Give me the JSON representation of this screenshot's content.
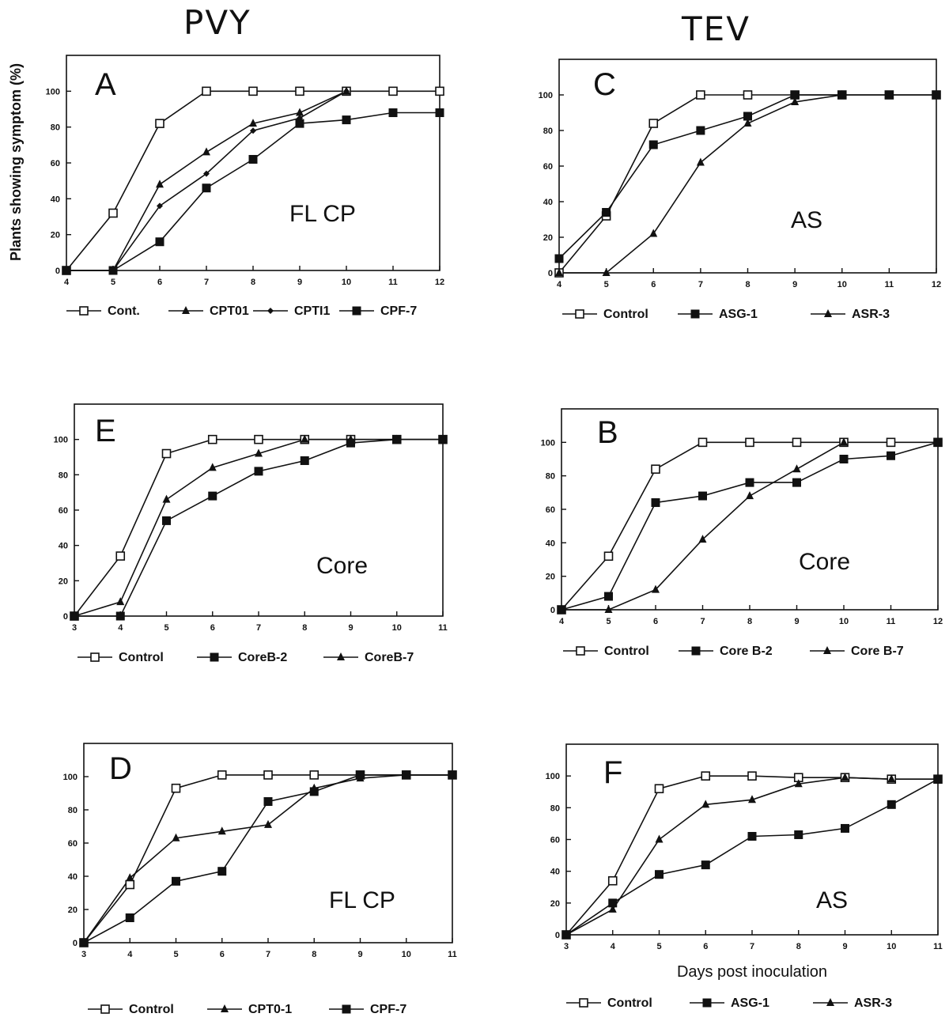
{
  "column_titles": [
    "PVY",
    "TEV"
  ],
  "colors": {
    "ink": "#111111",
    "background": "#ffffff"
  },
  "chart_data": [
    {
      "type": "line",
      "panel": "A",
      "annotation": "FL CP",
      "ylabel": "Plants showing symptom (%)",
      "xlabel": "",
      "x": [
        4,
        5,
        6,
        7,
        8,
        9,
        10,
        11,
        12
      ],
      "xlim": [
        4,
        12
      ],
      "ylim": [
        0,
        120
      ],
      "yticks": [
        0,
        20,
        40,
        60,
        80,
        100
      ],
      "grid": false,
      "legend": "bottom",
      "series": [
        {
          "name": "Cont.",
          "marker": "open-square",
          "x": [
            4,
            5,
            6,
            7,
            8,
            9,
            10,
            11,
            12
          ],
          "values": [
            0,
            32,
            82,
            100,
            100,
            100,
            100,
            100,
            100
          ]
        },
        {
          "name": "CPT01",
          "marker": "triangle",
          "x": [
            4,
            5,
            6,
            7,
            8,
            9,
            10
          ],
          "values": [
            0,
            0,
            48,
            66,
            82,
            88,
            100
          ]
        },
        {
          "name": "CPTI1",
          "marker": "diamond",
          "x": [
            4,
            5,
            6,
            7,
            8,
            9,
            10
          ],
          "values": [
            0,
            0,
            36,
            54,
            78,
            85,
            100
          ]
        },
        {
          "name": "CPF-7",
          "marker": "square",
          "x": [
            4,
            5,
            6,
            7,
            8,
            9,
            10,
            11,
            12
          ],
          "values": [
            0,
            0,
            16,
            46,
            62,
            82,
            84,
            88,
            88
          ]
        }
      ]
    },
    {
      "type": "line",
      "panel": "B",
      "annotation": "Core",
      "ylabel": "Plants showing symptom (%)",
      "xlabel": "",
      "x": [
        4,
        5,
        6,
        7,
        8,
        9,
        10,
        11,
        12
      ],
      "xlim": [
        4,
        12
      ],
      "ylim": [
        0,
        120
      ],
      "yticks": [
        0,
        20,
        40,
        60,
        80,
        100
      ],
      "grid": false,
      "legend": "bottom",
      "series": [
        {
          "name": "Control",
          "marker": "open-square",
          "x": [
            4,
            5,
            6,
            7,
            8,
            9,
            10,
            11,
            12
          ],
          "values": [
            0,
            32,
            84,
            100,
            100,
            100,
            100,
            100,
            100
          ]
        },
        {
          "name": "Core B-2",
          "marker": "square",
          "x": [
            4,
            5,
            6,
            7,
            8,
            9,
            10,
            11,
            12
          ],
          "values": [
            0,
            8,
            64,
            68,
            76,
            76,
            90,
            92,
            100
          ]
        },
        {
          "name": "Core B-7",
          "marker": "triangle",
          "x": [
            4,
            5,
            6,
            7,
            8,
            9,
            10
          ],
          "values": [
            0,
            0,
            12,
            42,
            68,
            84,
            100
          ]
        }
      ]
    },
    {
      "type": "line",
      "panel": "C",
      "annotation": "AS",
      "ylabel": "Plants showing symptom (%)",
      "xlabel": "Days post inoculation",
      "x": [
        4,
        5,
        6,
        7,
        8,
        9,
        10,
        11,
        12
      ],
      "xlim": [
        4,
        12
      ],
      "ylim": [
        0,
        120
      ],
      "yticks": [
        0,
        20,
        40,
        60,
        80,
        100
      ],
      "grid": false,
      "legend": "bottom",
      "series": [
        {
          "name": "Control",
          "marker": "open-square",
          "x": [
            4,
            5,
            6,
            7,
            8,
            9,
            10,
            11,
            12
          ],
          "values": [
            0,
            32,
            84,
            100,
            100,
            100,
            100,
            100,
            100
          ]
        },
        {
          "name": "ASG-1",
          "marker": "square",
          "x": [
            4,
            5,
            6,
            7,
            8,
            9,
            10,
            11,
            12
          ],
          "values": [
            8,
            34,
            72,
            80,
            88,
            100,
            100,
            100,
            100
          ]
        },
        {
          "name": "ASR-3",
          "marker": "triangle",
          "x": [
            4,
            5,
            6,
            7,
            8,
            9,
            10
          ],
          "values": [
            0,
            0,
            22,
            62,
            84,
            96,
            100
          ]
        }
      ]
    },
    {
      "type": "line",
      "panel": "D",
      "annotation": "FL CP",
      "ylabel": "",
      "xlabel": "",
      "x": [
        3,
        4,
        5,
        6,
        7,
        8,
        9,
        10,
        11
      ],
      "xlim": [
        3,
        11
      ],
      "ylim": [
        0,
        120
      ],
      "yticks": [
        0,
        20,
        40,
        60,
        80,
        100
      ],
      "grid": false,
      "legend": "bottom",
      "series": [
        {
          "name": "Control",
          "marker": "open-square",
          "x": [
            3,
            4,
            5,
            6,
            7,
            8,
            9,
            10,
            11
          ],
          "values": [
            0,
            35,
            93,
            101,
            101,
            101,
            101,
            101,
            101
          ]
        },
        {
          "name": "CPT0-1",
          "marker": "triangle",
          "x": [
            3,
            4,
            5,
            6,
            7,
            8,
            9,
            10,
            11
          ],
          "values": [
            0,
            39,
            63,
            67,
            71,
            93,
            99,
            101,
            101
          ]
        },
        {
          "name": "CPF-7",
          "marker": "square",
          "x": [
            3,
            4,
            5,
            6,
            7,
            8,
            9,
            10,
            11
          ],
          "values": [
            0,
            15,
            37,
            43,
            85,
            91,
            101,
            101,
            101
          ]
        }
      ]
    },
    {
      "type": "line",
      "panel": "E",
      "annotation": "Core",
      "ylabel": "",
      "xlabel": "",
      "x": [
        3,
        4,
        5,
        6,
        7,
        8,
        9,
        10,
        11
      ],
      "xlim": [
        3,
        11
      ],
      "ylim": [
        0,
        120
      ],
      "yticks": [
        0,
        20,
        40,
        60,
        80,
        100
      ],
      "grid": false,
      "legend": "bottom",
      "series": [
        {
          "name": "Control",
          "marker": "open-square",
          "x": [
            3,
            4,
            5,
            6,
            7,
            8,
            9,
            10,
            11
          ],
          "values": [
            0,
            34,
            92,
            100,
            100,
            100,
            100,
            100,
            100
          ]
        },
        {
          "name": "CoreB-2",
          "marker": "square",
          "x": [
            3,
            4,
            5,
            6,
            7,
            8,
            9,
            10,
            11
          ],
          "values": [
            0,
            0,
            54,
            68,
            82,
            88,
            98,
            100,
            100
          ]
        },
        {
          "name": "CoreB-7",
          "marker": "triangle",
          "x": [
            3,
            4,
            5,
            6,
            7,
            8,
            9,
            10,
            11
          ],
          "values": [
            0,
            8,
            66,
            84,
            92,
            100,
            100,
            100,
            100
          ]
        }
      ]
    },
    {
      "type": "line",
      "panel": "F",
      "annotation": "AS",
      "ylabel": "",
      "xlabel": "Days post inoculation",
      "x": [
        3,
        4,
        5,
        6,
        7,
        8,
        9,
        10,
        11
      ],
      "xlim": [
        3,
        11
      ],
      "ylim": [
        0,
        120
      ],
      "yticks": [
        0,
        20,
        40,
        60,
        80,
        100
      ],
      "grid": false,
      "legend": "bottom",
      "series": [
        {
          "name": "Control",
          "marker": "open-square",
          "x": [
            3,
            4,
            5,
            6,
            7,
            8,
            9,
            10,
            11
          ],
          "values": [
            0,
            34,
            92,
            100,
            100,
            99,
            99,
            98,
            98
          ]
        },
        {
          "name": "ASG-1",
          "marker": "square",
          "x": [
            3,
            4,
            5,
            6,
            7,
            8,
            9,
            10,
            11
          ],
          "values": [
            0,
            20,
            38,
            44,
            62,
            63,
            67,
            82,
            98
          ]
        },
        {
          "name": "ASR-3",
          "marker": "triangle",
          "x": [
            3,
            4,
            5,
            6,
            7,
            8,
            9,
            10,
            11
          ],
          "values": [
            0,
            16,
            60,
            82,
            85,
            95,
            99,
            98,
            98
          ]
        }
      ]
    }
  ]
}
